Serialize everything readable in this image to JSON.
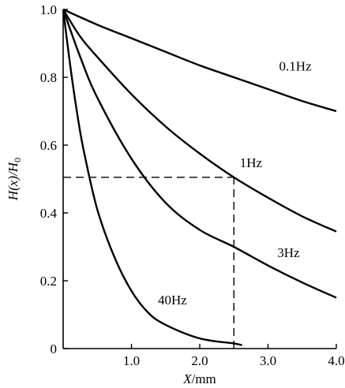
{
  "chart_data": {
    "type": "line",
    "xlabel": "X/mm",
    "ylabel": "H(x)/H0",
    "xlim": [
      0,
      4.0
    ],
    "ylim": [
      0,
      1.0
    ],
    "x_ticks": [
      {
        "value": 1.0,
        "label": "1.0"
      },
      {
        "value": 2.0,
        "label": "2.0"
      },
      {
        "value": 3.0,
        "label": "3.0"
      },
      {
        "value": 4.0,
        "label": "4.0"
      }
    ],
    "y_ticks": [
      {
        "value": 0.0,
        "label": "0"
      },
      {
        "value": 0.2,
        "label": "0.2"
      },
      {
        "value": 0.4,
        "label": "0.4"
      },
      {
        "value": 0.6,
        "label": "0.6"
      },
      {
        "value": 0.8,
        "label": "0.8"
      },
      {
        "value": 1.0,
        "label": "1.0"
      }
    ],
    "grid": false,
    "series": [
      {
        "name": "0.1Hz",
        "x": [
          0,
          0.5,
          1.0,
          1.5,
          2.0,
          2.5,
          3.0,
          3.5,
          4.0
        ],
        "y": [
          1.0,
          0.955,
          0.915,
          0.875,
          0.835,
          0.8,
          0.765,
          0.73,
          0.7
        ]
      },
      {
        "name": "1Hz",
        "x": [
          0,
          0.25,
          0.5,
          1.0,
          1.5,
          2.0,
          2.5,
          3.0,
          3.5,
          4.0
        ],
        "y": [
          1.0,
          0.92,
          0.86,
          0.75,
          0.655,
          0.575,
          0.505,
          0.445,
          0.39,
          0.345
        ]
      },
      {
        "name": "3Hz",
        "x": [
          0,
          0.25,
          0.5,
          1.0,
          1.5,
          2.0,
          2.5,
          3.0,
          3.5,
          4.0
        ],
        "y": [
          1.0,
          0.86,
          0.74,
          0.56,
          0.43,
          0.35,
          0.3,
          0.245,
          0.195,
          0.15
        ]
      },
      {
        "name": "40Hz",
        "x": [
          0,
          0.1,
          0.2,
          0.3,
          0.5,
          0.75,
          1.0,
          1.25,
          1.5,
          2.0,
          2.5,
          2.62
        ],
        "y": [
          1.0,
          0.84,
          0.7,
          0.585,
          0.41,
          0.27,
          0.17,
          0.105,
          0.07,
          0.03,
          0.015,
          0.01
        ]
      }
    ],
    "reference_lines": [
      {
        "type": "horizontal",
        "y": 0.505,
        "x_from": 0,
        "x_to": 2.5
      },
      {
        "type": "vertical",
        "x": 2.5,
        "y_from": 0,
        "y_to": 0.505
      }
    ]
  }
}
